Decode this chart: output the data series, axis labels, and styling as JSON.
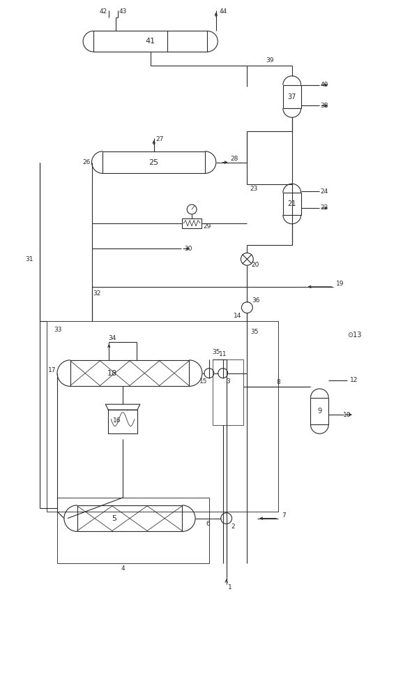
{
  "bg_color": "#ffffff",
  "line_color": "#2a2a2a",
  "line_width": 0.8,
  "fig_width": 5.78,
  "fig_height": 10.0,
  "dpi": 100
}
